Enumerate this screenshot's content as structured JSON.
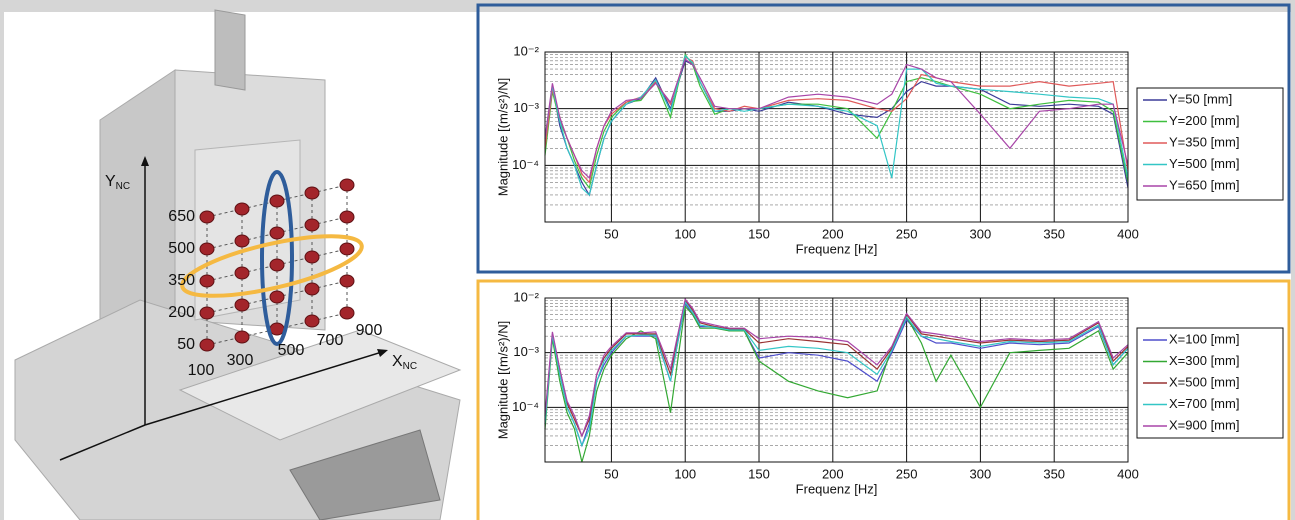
{
  "diagram": {
    "y_axis": {
      "letter": "Y",
      "subscript": "NC"
    },
    "x_axis": {
      "letter": "X",
      "subscript": "NC"
    },
    "y_positions": [
      "650",
      "500",
      "350",
      "200",
      "50"
    ],
    "x_positions": [
      "100",
      "300",
      "500",
      "700",
      "900"
    ]
  },
  "chart_data": [
    {
      "type": "line",
      "xlabel": "Frequenz [Hz]",
      "ylabel": "Magnitude [(m/s²)/N]",
      "log_y": true,
      "grid": true,
      "minor_grid": true,
      "legend": "right",
      "frame_color": "#2f5d9b",
      "xlim": [
        5,
        400
      ],
      "xticks": [
        50,
        100,
        150,
        200,
        250,
        300,
        350,
        400
      ],
      "ylim": [
        1e-05,
        0.01
      ],
      "yticks": [
        {
          "value": 0.0001,
          "label": "10⁻⁴"
        },
        {
          "value": 0.001,
          "label": "10⁻³"
        },
        {
          "value": 0.01,
          "label": "10⁻²"
        }
      ],
      "x": [
        5,
        10,
        15,
        20,
        25,
        30,
        35,
        40,
        45,
        50,
        60,
        70,
        80,
        90,
        100,
        105,
        110,
        120,
        130,
        140,
        150,
        170,
        190,
        210,
        230,
        240,
        250,
        260,
        270,
        280,
        300,
        320,
        340,
        360,
        380,
        390,
        400
      ],
      "series": [
        {
          "name": "Y=50 [mm]",
          "color": "#3b3b99",
          "values": [
            0.0002,
            0.0025,
            0.0005,
            0.0002,
            0.0001,
            5e-05,
            3e-05,
            0.0001,
            0.0003,
            0.0006,
            0.0012,
            0.0015,
            0.0035,
            0.001,
            0.007,
            0.006,
            0.003,
            0.0009,
            0.0009,
            0.001,
            0.0009,
            0.0013,
            0.0011,
            0.0008,
            0.0007,
            0.001,
            0.002,
            0.003,
            0.0025,
            0.0025,
            0.0022,
            0.0012,
            0.0011,
            0.0012,
            0.0011,
            0.0008,
            4e-05
          ]
        },
        {
          "name": "Y=200 [mm]",
          "color": "#3fbf3f",
          "values": [
            0.00015,
            0.002,
            0.0006,
            0.0003,
            0.00012,
            6e-05,
            4e-05,
            0.00015,
            0.0004,
            0.0007,
            0.0013,
            0.0014,
            0.003,
            0.0007,
            0.009,
            0.006,
            0.0025,
            0.0008,
            0.001,
            0.001,
            0.001,
            0.0012,
            0.0012,
            0.001,
            0.0003,
            0.0009,
            0.003,
            0.0035,
            0.003,
            0.0025,
            0.0018,
            0.001,
            0.0012,
            0.0014,
            0.0013,
            0.0009,
            5e-05
          ]
        },
        {
          "name": "Y=350 [mm]",
          "color": "#e05a5a",
          "values": [
            0.0002,
            0.0022,
            0.0007,
            0.0003,
            0.00015,
            7e-05,
            5e-05,
            0.0002,
            0.0005,
            0.0008,
            0.0013,
            0.0016,
            0.003,
            0.0012,
            0.008,
            0.007,
            0.003,
            0.001,
            0.0009,
            0.0011,
            0.001,
            0.0014,
            0.0015,
            0.0014,
            0.001,
            0.0009,
            0.0015,
            0.004,
            0.0035,
            0.003,
            0.0025,
            0.0025,
            0.003,
            0.0025,
            0.0028,
            0.003,
            8e-05
          ]
        },
        {
          "name": "Y=500 [mm]",
          "color": "#33c6c6",
          "values": [
            0.0003,
            0.0025,
            0.0006,
            0.0002,
            0.0001,
            4e-05,
            3e-05,
            0.0001,
            0.0003,
            0.0006,
            0.0012,
            0.0016,
            0.0032,
            0.0009,
            0.0085,
            0.0065,
            0.003,
            0.0009,
            0.001,
            0.0009,
            0.001,
            0.0012,
            0.0011,
            0.0009,
            0.0005,
            6e-05,
            0.005,
            0.005,
            0.0028,
            0.0025,
            0.0022,
            0.002,
            0.0018,
            0.0016,
            0.0015,
            0.0012,
            6e-05
          ]
        },
        {
          "name": "Y=650 [mm]",
          "color": "#a845a8",
          "values": [
            0.0003,
            0.0028,
            0.0007,
            0.0003,
            0.00015,
            8e-05,
            6e-05,
            0.0002,
            0.0005,
            0.0009,
            0.0014,
            0.0015,
            0.0028,
            0.0013,
            0.0075,
            0.006,
            0.0035,
            0.0011,
            0.001,
            0.001,
            0.001,
            0.0016,
            0.0018,
            0.0016,
            0.0012,
            0.0018,
            0.006,
            0.005,
            0.0035,
            0.003,
            0.0008,
            0.0002,
            0.0009,
            0.001,
            0.0012,
            0.0012,
            0.0001
          ]
        }
      ]
    },
    {
      "type": "line",
      "xlabel": "Frequenz [Hz]",
      "ylabel": "Magnitude [(m/s²)/N]",
      "log_y": true,
      "grid": true,
      "minor_grid": true,
      "legend": "right",
      "frame_color": "#f5b942",
      "xlim": [
        5,
        400
      ],
      "xticks": [
        50,
        100,
        150,
        200,
        250,
        300,
        350,
        400
      ],
      "ylim": [
        1e-05,
        0.01
      ],
      "yticks": [
        {
          "value": 0.0001,
          "label": "10⁻⁴"
        },
        {
          "value": 0.001,
          "label": "10⁻³"
        },
        {
          "value": 0.01,
          "label": "10⁻²"
        }
      ],
      "x": [
        5,
        10,
        15,
        20,
        25,
        30,
        35,
        40,
        45,
        50,
        60,
        70,
        80,
        90,
        100,
        105,
        110,
        120,
        130,
        140,
        150,
        170,
        190,
        210,
        230,
        240,
        250,
        260,
        270,
        280,
        300,
        320,
        340,
        360,
        380,
        390,
        400
      ],
      "series": [
        {
          "name": "X=100 [mm]",
          "color": "#4f4fcc",
          "values": [
            5e-05,
            0.002,
            0.0004,
            0.0001,
            5e-05,
            2e-05,
            5e-05,
            0.0003,
            0.0006,
            0.001,
            0.002,
            0.002,
            0.002,
            0.0003,
            0.008,
            0.005,
            0.003,
            0.003,
            0.0025,
            0.0025,
            0.0008,
            0.001,
            0.0009,
            0.0007,
            0.0003,
            0.001,
            0.004,
            0.002,
            0.0015,
            0.0015,
            0.0012,
            0.0015,
            0.0014,
            0.0015,
            0.003,
            0.0006,
            0.0012
          ]
        },
        {
          "name": "X=300 [mm]",
          "color": "#33a833",
          "values": [
            4e-05,
            0.0018,
            0.0003,
            8e-05,
            4e-05,
            1e-05,
            3e-05,
            0.0002,
            0.0005,
            0.0009,
            0.0018,
            0.0025,
            0.0018,
            8e-05,
            0.007,
            0.005,
            0.0028,
            0.0028,
            0.0025,
            0.0025,
            0.0007,
            0.0003,
            0.0002,
            0.00015,
            0.0002,
            0.0012,
            0.0045,
            0.0015,
            0.0003,
            0.0009,
            0.0001,
            0.001,
            0.0011,
            0.0012,
            0.0025,
            0.0005,
            0.001
          ]
        },
        {
          "name": "X=500 [mm]",
          "color": "#993333",
          "values": [
            6e-05,
            0.0022,
            0.0005,
            0.00012,
            6e-05,
            3e-05,
            6e-05,
            0.0004,
            0.0008,
            0.0012,
            0.0022,
            0.0022,
            0.0022,
            0.0004,
            0.009,
            0.006,
            0.0035,
            0.003,
            0.0027,
            0.0027,
            0.0015,
            0.0018,
            0.0016,
            0.0014,
            0.0005,
            0.0012,
            0.005,
            0.0022,
            0.002,
            0.0018,
            0.0015,
            0.0017,
            0.0016,
            0.0017,
            0.0035,
            0.0007,
            0.0013
          ]
        },
        {
          "name": "X=700 [mm]",
          "color": "#33c6c6",
          "values": [
            5e-05,
            0.0021,
            0.0004,
            0.0001,
            5e-05,
            2e-05,
            4e-05,
            0.0003,
            0.0007,
            0.0011,
            0.002,
            0.0021,
            0.0021,
            0.0003,
            0.0085,
            0.0055,
            0.0032,
            0.0029,
            0.0026,
            0.0026,
            0.0011,
            0.0013,
            0.0012,
            0.001,
            0.0004,
            0.0011,
            0.0045,
            0.002,
            0.0018,
            0.0016,
            0.0013,
            0.0016,
            0.0015,
            0.0016,
            0.0032,
            0.0006,
            0.0012
          ]
        },
        {
          "name": "X=900 [mm]",
          "color": "#a845a8",
          "values": [
            7e-05,
            0.0024,
            0.0005,
            0.00013,
            7e-05,
            3e-05,
            7e-05,
            0.0004,
            0.0009,
            0.0013,
            0.0023,
            0.0023,
            0.0024,
            0.0005,
            0.0095,
            0.0065,
            0.0037,
            0.0032,
            0.0028,
            0.0028,
            0.0018,
            0.002,
            0.0019,
            0.0016,
            0.0006,
            0.0013,
            0.0052,
            0.0024,
            0.0022,
            0.002,
            0.0016,
            0.0018,
            0.0017,
            0.0018,
            0.0037,
            0.0008,
            0.0014
          ]
        }
      ]
    }
  ]
}
